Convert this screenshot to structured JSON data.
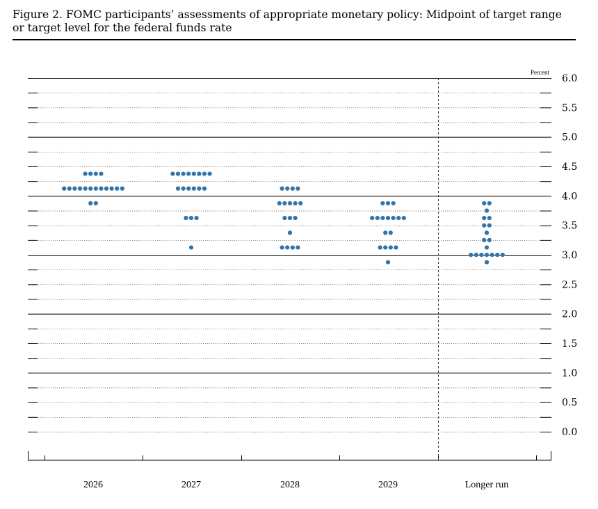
{
  "figure": {
    "title": "Figure 2. FOMC participants’ assessments of appropriate monetary policy: Midpoint of target range or target level for the federal funds rate"
  },
  "chart_data": {
    "type": "scatter",
    "subtype": "dot-plot",
    "unit": "Percent",
    "ylim": [
      0,
      6.0
    ],
    "yticks": [
      "6.0",
      "5.5",
      "5.0",
      "4.5",
      "4.0",
      "3.5",
      "3.0",
      "2.5",
      "2.0",
      "1.5",
      "1.0",
      "0.5",
      "0.0"
    ],
    "ytick_values": [
      6.0,
      5.5,
      5.0,
      4.5,
      4.0,
      3.5,
      3.0,
      2.5,
      2.0,
      1.5,
      1.0,
      0.5,
      0.0
    ],
    "grid": "dotted lines every 0.25, solid lines at whole percents",
    "categories": [
      "2026",
      "2027",
      "2028",
      "2029",
      "Longer run"
    ],
    "longer_run_separator": "dashed vertical line",
    "dot_color": "#3274a8",
    "series": [
      {
        "category": "2026",
        "dots": [
          {
            "y": 4.375,
            "count": 4
          },
          {
            "y": 4.125,
            "count": 12
          },
          {
            "y": 3.875,
            "count": 2
          }
        ]
      },
      {
        "category": "2027",
        "dots": [
          {
            "y": 4.375,
            "count": 8
          },
          {
            "y": 4.125,
            "count": 6
          },
          {
            "y": 3.625,
            "count": 3
          },
          {
            "y": 3.125,
            "count": 1
          }
        ]
      },
      {
        "category": "2028",
        "dots": [
          {
            "y": 4.125,
            "count": 4
          },
          {
            "y": 3.875,
            "count": 5
          },
          {
            "y": 3.625,
            "count": 3
          },
          {
            "y": 3.375,
            "count": 1
          },
          {
            "y": 3.125,
            "count": 4
          }
        ]
      },
      {
        "category": "2029",
        "dots": [
          {
            "y": 3.875,
            "count": 3
          },
          {
            "y": 3.625,
            "count": 7
          },
          {
            "y": 3.375,
            "count": 2
          },
          {
            "y": 3.125,
            "count": 4
          },
          {
            "y": 2.875,
            "count": 1
          }
        ]
      },
      {
        "category": "Longer run",
        "dots": [
          {
            "y": 3.875,
            "count": 2
          },
          {
            "y": 3.75,
            "count": 1
          },
          {
            "y": 3.625,
            "count": 2
          },
          {
            "y": 3.5,
            "count": 2
          },
          {
            "y": 3.375,
            "count": 1
          },
          {
            "y": 3.25,
            "count": 2
          },
          {
            "y": 3.125,
            "count": 1
          },
          {
            "y": 3.0,
            "count": 7
          },
          {
            "y": 2.875,
            "count": 1
          }
        ]
      }
    ]
  }
}
